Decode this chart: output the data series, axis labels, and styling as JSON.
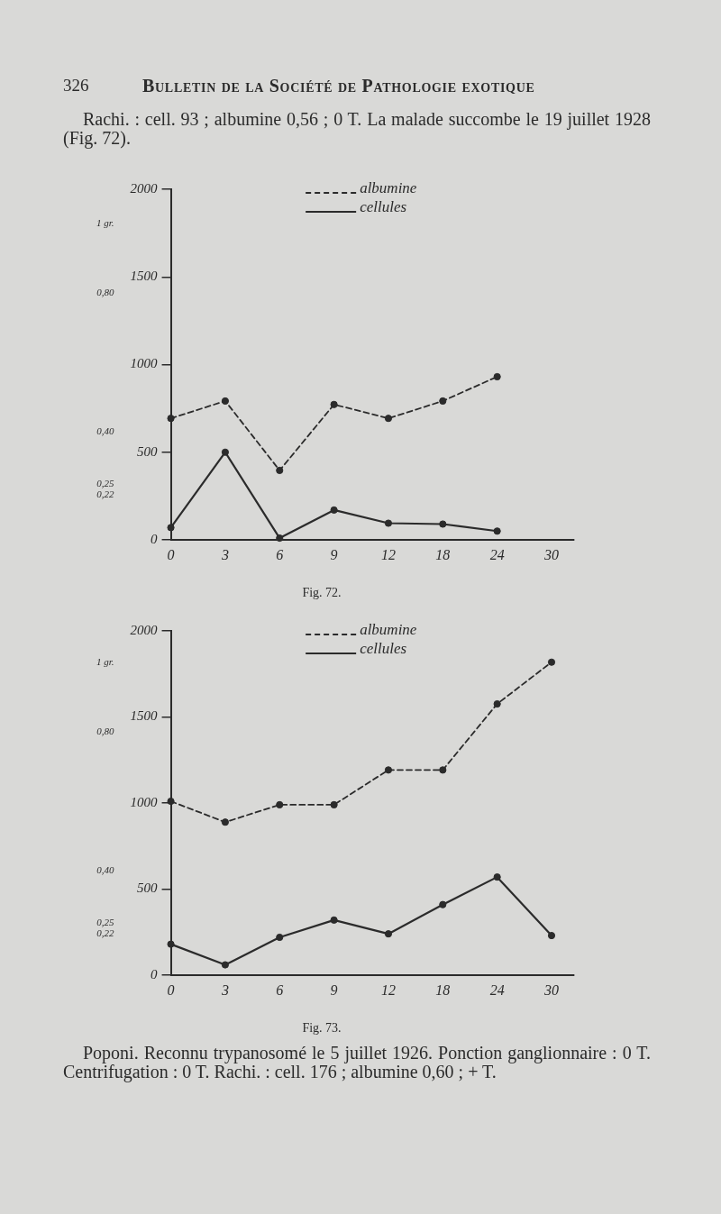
{
  "chart_data": [
    {
      "type": "line",
      "title": "Fig. 72.",
      "annotations": [
        "326",
        "Bulletin de la Société de Pathologie exotique",
        "Rachi. : cell. 93 ; albumine 0,56 ; 0 T. La malade succombe le 19 juillet 1928 (Fig. 72)."
      ],
      "categories": [
        "0",
        "3",
        "6",
        "9",
        "12",
        "18",
        "24",
        "30"
      ],
      "series": [
        {
          "name": "albumine",
          "color": "#2b2b2b",
          "axis": "y2",
          "line_style": "dashed",
          "values": [
            0.44,
            0.49,
            0.29,
            0.48,
            0.44,
            0.49,
            0.56,
            null
          ]
        },
        {
          "name": "cellules",
          "color": "#2b2b2b",
          "line_style": "solid",
          "values": [
            70,
            500,
            10,
            170,
            95,
            90,
            50,
            null
          ]
        }
      ],
      "ylim": [
        0,
        2000
      ],
      "yticks": [
        0,
        500,
        1000,
        1500,
        2000
      ],
      "y2lim": [
        0.09,
        1.1
      ],
      "y2ticks": [
        {
          "value": 0.22,
          "label": "0,22"
        },
        {
          "value": 0.25,
          "label": "0,25"
        },
        {
          "value": 0.4,
          "label": "0,40"
        },
        {
          "value": 0.8,
          "label": "0,80"
        },
        {
          "value": 1,
          "label": "1 gr."
        }
      ],
      "legend": "top",
      "marker": "circle",
      "grid": false
    },
    {
      "type": "line",
      "title": "Fig. 73.",
      "annotations": [
        "Poponi. Reconnu trypanosomé le 5 juillet 1926. Ponction ganglionnaire : 0 T. Centrifugation : 0 T. Rachi. : cell. 176 ; albumine 0,60 ; + T."
      ],
      "categories": [
        "0",
        "3",
        "6",
        "9",
        "12",
        "18",
        "24",
        "30"
      ],
      "series": [
        {
          "name": "albumine",
          "color": "#2b2b2b",
          "axis": "y2",
          "line_style": "dashed",
          "values": [
            0.6,
            0.54,
            0.59,
            0.59,
            0.69,
            0.69,
            0.88,
            1.0
          ]
        },
        {
          "name": "cellules",
          "color": "#2b2b2b",
          "line_style": "solid",
          "values": [
            180,
            60,
            220,
            320,
            240,
            410,
            570,
            230
          ]
        }
      ],
      "ylim": [
        0,
        2000
      ],
      "yticks": [
        0,
        500,
        1000,
        1500,
        2000
      ],
      "y2lim": [
        0.1,
        1.09
      ],
      "y2ticks": [
        {
          "value": 0.22,
          "label": "0,22"
        },
        {
          "value": 0.25,
          "label": "0,25"
        },
        {
          "value": 0.4,
          "label": "0,40"
        },
        {
          "value": 0.8,
          "label": "0,80"
        },
        {
          "value": 1,
          "label": "1 gr."
        }
      ],
      "legend": "top",
      "marker": "circle",
      "grid": false
    }
  ]
}
